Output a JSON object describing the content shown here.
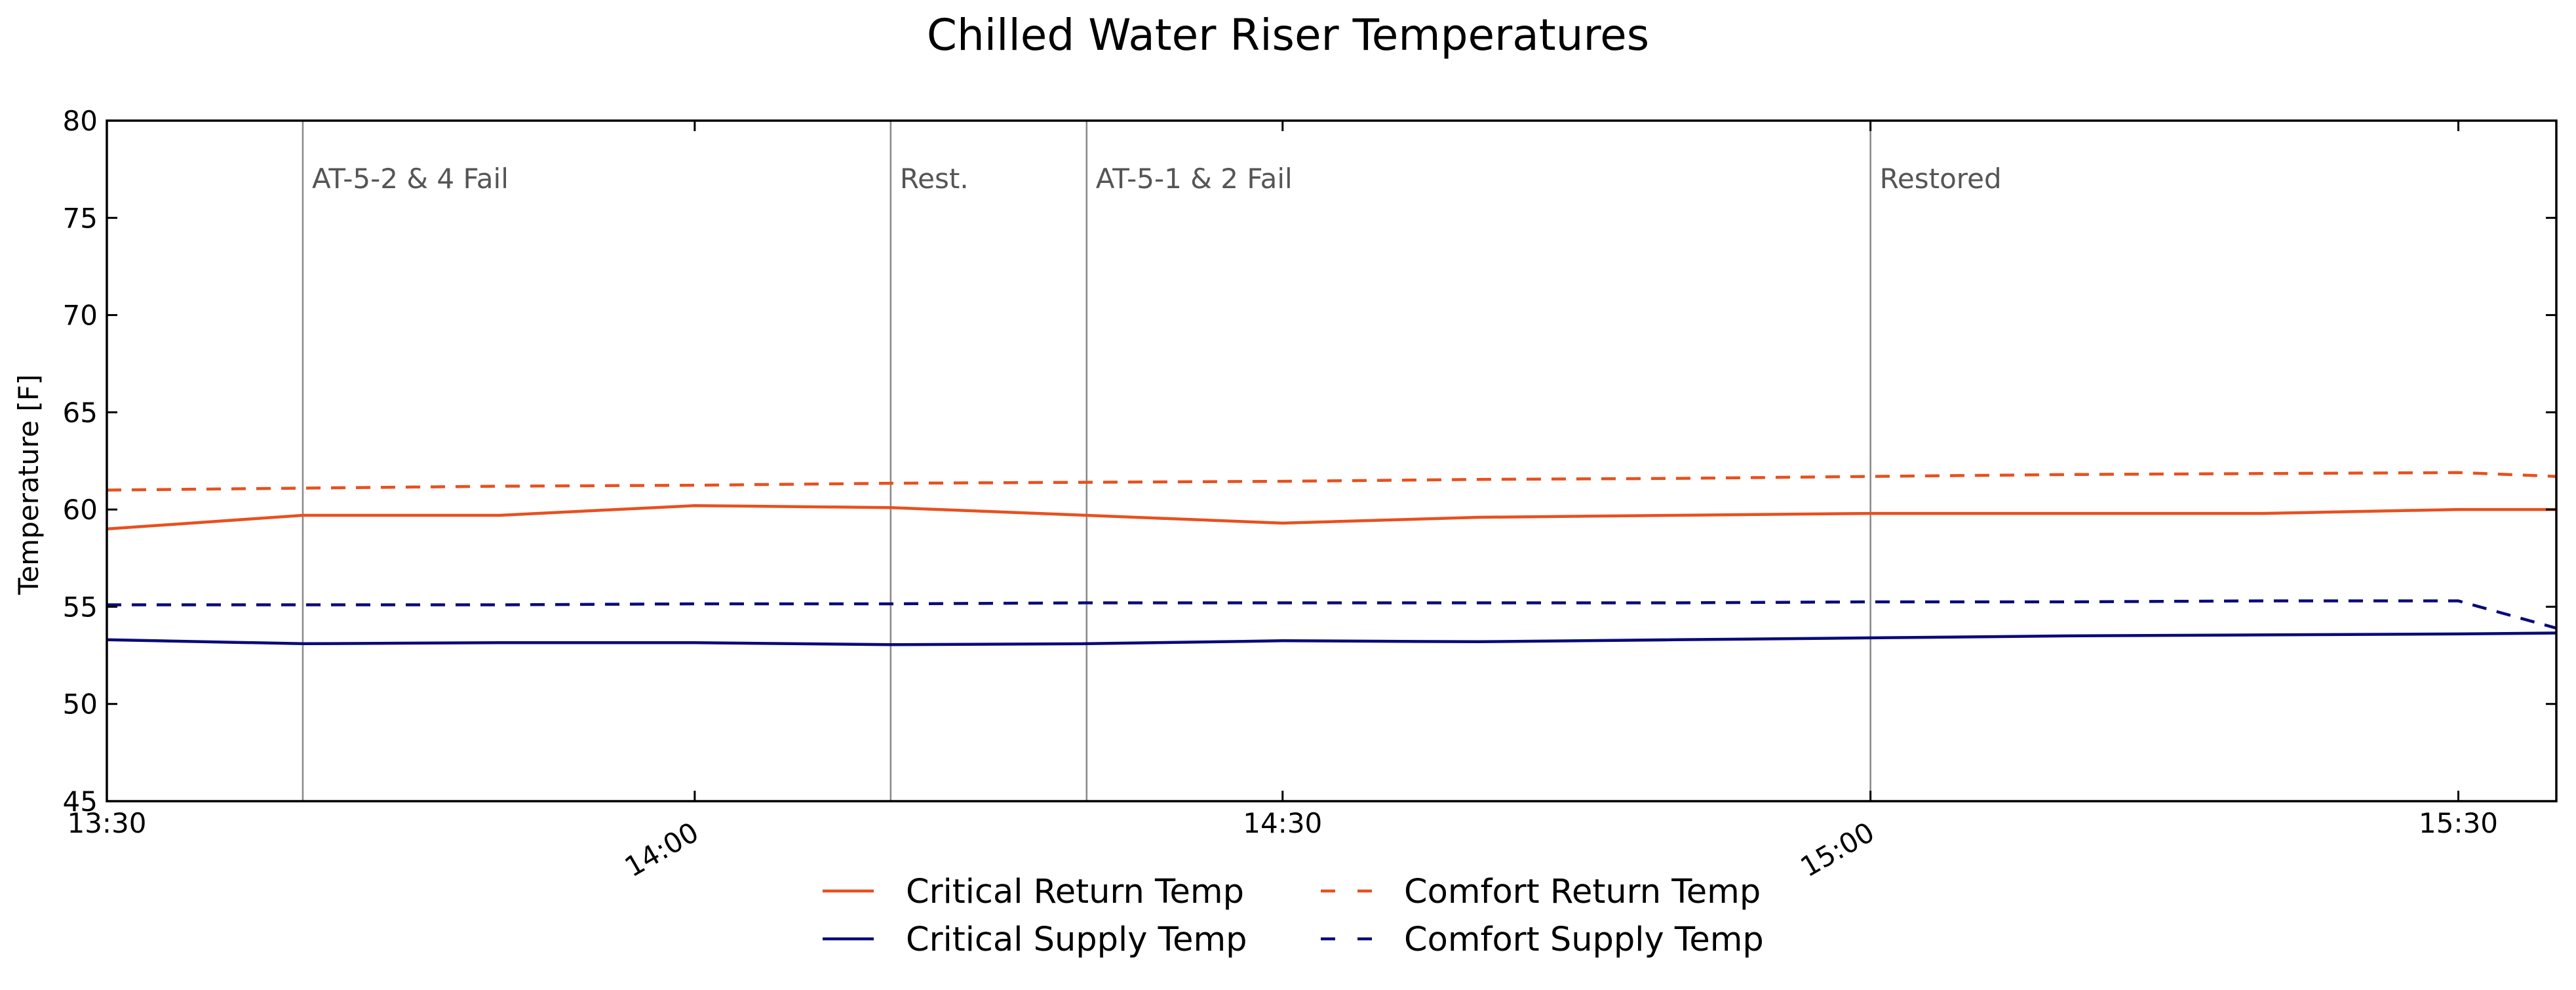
{
  "chart_data": {
    "type": "line",
    "title": "Chilled Water Riser Temperatures",
    "xlabel": "",
    "ylabel": "Temperature [F]",
    "ylim": [
      45,
      80
    ],
    "yticks": [
      45,
      50,
      55,
      60,
      65,
      70,
      75,
      80
    ],
    "xlim": [
      "13:30",
      "15:35"
    ],
    "xticks": [
      "13:30",
      "14:00",
      "14:30",
      "15:00",
      "15:30"
    ],
    "x": [
      "13:30",
      "13:40",
      "13:50",
      "14:00",
      "14:10",
      "14:20",
      "14:30",
      "14:40",
      "14:50",
      "15:00",
      "15:10",
      "15:20",
      "15:30",
      "15:35"
    ],
    "series": [
      {
        "name": "Critical Return Temp",
        "color": "#e8501e",
        "style": "solid",
        "values": [
          59.0,
          59.7,
          59.7,
          60.2,
          60.1,
          59.7,
          59.3,
          59.6,
          59.7,
          59.8,
          59.8,
          59.8,
          60.0,
          60.0
        ]
      },
      {
        "name": "Comfort Return Temp",
        "color": "#e8501e",
        "style": "dashed",
        "values": [
          61.0,
          61.1,
          61.2,
          61.25,
          61.35,
          61.4,
          61.45,
          61.55,
          61.6,
          61.7,
          61.8,
          61.85,
          61.9,
          61.7
        ]
      },
      {
        "name": "Critical Supply Temp",
        "color": "#0a0a7a",
        "style": "solid",
        "values": [
          53.3,
          53.1,
          53.15,
          53.15,
          53.05,
          53.1,
          53.25,
          53.2,
          53.3,
          53.4,
          53.5,
          53.55,
          53.6,
          53.65
        ]
      },
      {
        "name": "Comfort Supply Temp",
        "color": "#0a0a7a",
        "style": "dashed",
        "values": [
          55.1,
          55.1,
          55.1,
          55.15,
          55.15,
          55.2,
          55.2,
          55.2,
          55.2,
          55.25,
          55.25,
          55.3,
          55.3,
          53.9
        ]
      }
    ],
    "events": [
      {
        "time": "13:40",
        "label": "AT-5-2 & 4 Fail"
      },
      {
        "time": "14:10",
        "label": "Rest."
      },
      {
        "time": "14:20",
        "label": "AT-5-1 & 2 Fail"
      },
      {
        "time": "15:00",
        "label": "Restored"
      }
    ],
    "grid": false,
    "legend_placement": "bottom-center",
    "legend_order": [
      "Critical Return Temp",
      "Critical Supply Temp",
      "Comfort Return Temp",
      "Comfort Supply Temp"
    ],
    "event_line_color": "#888888"
  }
}
